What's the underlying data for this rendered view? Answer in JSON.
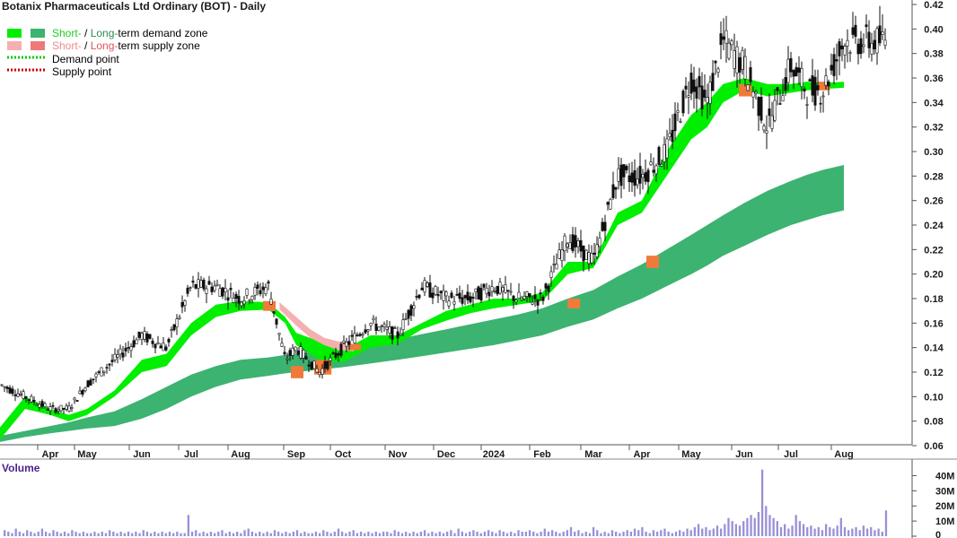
{
  "chart_data": {
    "type": "candlestick",
    "title": "Botanix Pharmaceuticals Ltd Ordinary (BOT) - Daily",
    "legend": {
      "placement": "top-left",
      "items": [
        {
          "label_a": "Short-",
          "label_b": " / ",
          "label_c": "Long-",
          "label_d": "term demand zone",
          "color_short": "#00ee00",
          "color_long": "#3cb371",
          "kind": "zone"
        },
        {
          "label_a": "Short-",
          "label_b": " / ",
          "label_c": "Long-",
          "label_d": "term supply zone",
          "color_short": "#f4b0b0",
          "color_long": "#f07878",
          "kind": "zone"
        },
        {
          "label": "Demand point",
          "color": "#00cc00",
          "kind": "dots"
        },
        {
          "label": "Supply point",
          "color": "#cc0000",
          "kind": "dots"
        }
      ]
    },
    "x_tick_labels": [
      "Apr",
      "May",
      "Jun",
      "Jul",
      "Aug",
      "Sep",
      "Oct",
      "Nov",
      "Dec",
      "2024",
      "Feb",
      "Mar",
      "Apr",
      "May",
      "Jun",
      "Jul",
      "Aug"
    ],
    "y_axis": {
      "side": "right",
      "ylim": [
        0.05,
        0.42
      ],
      "ticks": [
        0.06,
        0.08,
        0.1,
        0.12,
        0.14,
        0.16,
        0.18,
        0.2,
        0.22,
        0.24,
        0.26,
        0.28,
        0.3,
        0.32,
        0.34,
        0.36,
        0.38,
        0.4,
        0.42
      ]
    },
    "price_series": {
      "name": "BOT close",
      "x_month_index": [
        0,
        0.5,
        1,
        1.5,
        2,
        2.5,
        3,
        3.5,
        4,
        4.5,
        5,
        5.5,
        5.8,
        6,
        6.5,
        7,
        7.5,
        8,
        8.5,
        9,
        9.5,
        10,
        10.5,
        11,
        11.5,
        12,
        12.5,
        13,
        13.5,
        14,
        14.3,
        14.6,
        15,
        15.5,
        16,
        16.3,
        16.6,
        17
      ],
      "close": [
        0.11,
        0.1,
        0.09,
        0.09,
        0.11,
        0.13,
        0.15,
        0.14,
        0.19,
        0.19,
        0.18,
        0.19,
        0.13,
        0.14,
        0.12,
        0.14,
        0.16,
        0.15,
        0.19,
        0.18,
        0.18,
        0.19,
        0.18,
        0.18,
        0.23,
        0.21,
        0.28,
        0.28,
        0.3,
        0.36,
        0.34,
        0.39,
        0.37,
        0.32,
        0.37,
        0.35,
        0.35,
        0.39
      ]
    },
    "short_term_zone": {
      "upper": [
        0.075,
        0.1,
        0.09,
        0.085,
        0.09,
        0.105,
        0.13,
        0.135,
        0.16,
        0.175,
        0.178,
        0.177,
        0.165,
        0.152,
        0.145,
        0.138,
        0.15,
        0.15,
        0.16,
        0.17,
        0.175,
        0.18,
        0.18,
        0.185,
        0.21,
        0.21,
        0.25,
        0.26,
        0.3,
        0.33,
        0.34,
        0.355,
        0.36,
        0.355,
        0.355,
        0.357,
        0.356,
        0.357
      ],
      "lower": [
        0.065,
        0.09,
        0.085,
        0.08,
        0.085,
        0.1,
        0.12,
        0.125,
        0.15,
        0.165,
        0.17,
        0.171,
        0.16,
        0.142,
        0.13,
        0.128,
        0.14,
        0.143,
        0.155,
        0.162,
        0.168,
        0.172,
        0.175,
        0.178,
        0.2,
        0.205,
        0.24,
        0.25,
        0.28,
        0.31,
        0.32,
        0.34,
        0.35,
        0.345,
        0.348,
        0.35,
        0.351,
        0.352
      ]
    },
    "long_term_zone": {
      "upper": [
        0.068,
        0.072,
        0.076,
        0.079,
        0.083,
        0.088,
        0.098,
        0.108,
        0.118,
        0.125,
        0.13,
        0.132,
        0.134,
        0.135,
        0.137,
        0.14,
        0.143,
        0.147,
        0.151,
        0.155,
        0.159,
        0.163,
        0.167,
        0.172,
        0.18,
        0.187,
        0.198,
        0.208,
        0.22,
        0.232,
        0.24,
        0.248,
        0.258,
        0.268,
        0.276,
        0.281,
        0.285,
        0.289
      ],
      "lower": [
        0.063,
        0.067,
        0.07,
        0.072,
        0.074,
        0.076,
        0.082,
        0.09,
        0.1,
        0.108,
        0.114,
        0.117,
        0.119,
        0.12,
        0.122,
        0.124,
        0.127,
        0.13,
        0.133,
        0.136,
        0.139,
        0.142,
        0.146,
        0.15,
        0.157,
        0.163,
        0.172,
        0.18,
        0.19,
        0.2,
        0.207,
        0.215,
        0.223,
        0.232,
        0.24,
        0.244,
        0.248,
        0.252
      ]
    },
    "volume": {
      "title": "Volume",
      "unit": "M",
      "ticks": [
        "0",
        "10M",
        "20M",
        "30M",
        "40M"
      ],
      "tick_values": [
        0,
        10,
        20,
        30,
        40
      ],
      "ylim": [
        0,
        45
      ],
      "values_m": [
        4,
        3,
        2,
        5,
        3,
        2,
        4,
        3,
        2,
        3,
        5,
        3,
        2,
        4,
        3,
        2,
        3,
        2,
        4,
        3,
        2,
        3,
        2,
        2,
        3,
        2,
        3,
        2,
        4,
        3,
        2,
        3,
        2,
        3,
        2,
        3,
        2,
        4,
        3,
        2,
        3,
        2,
        3,
        2,
        3,
        2,
        3,
        2,
        2,
        14,
        3,
        4,
        2,
        3,
        2,
        3,
        2,
        3,
        4,
        2,
        3,
        2,
        3,
        2,
        4,
        5,
        3,
        2,
        3,
        2,
        3,
        2,
        4,
        3,
        2,
        3,
        2,
        3,
        4,
        2,
        3,
        2,
        2,
        3,
        2,
        4,
        3,
        2,
        3,
        5,
        3,
        2,
        3,
        4,
        2,
        3,
        2,
        3,
        2,
        3,
        2,
        3,
        3,
        2,
        4,
        3,
        2,
        3,
        2,
        3,
        2,
        3,
        4,
        2,
        3,
        2,
        3,
        2,
        3,
        4,
        2,
        5,
        3,
        2,
        3,
        4,
        3,
        2,
        3,
        4,
        3,
        2,
        4,
        3,
        2,
        3,
        2,
        4,
        3,
        3,
        4,
        3,
        2,
        3,
        5,
        3,
        4,
        3,
        2,
        3,
        4,
        6,
        3,
        4,
        2,
        3,
        2,
        6,
        4,
        2,
        3,
        2,
        4,
        3,
        2,
        3,
        4,
        3,
        5,
        4,
        6,
        3,
        2,
        4,
        3,
        4,
        5,
        3,
        2,
        3,
        4,
        3,
        5,
        4,
        6,
        8,
        5,
        6,
        4,
        5,
        7,
        5,
        8,
        12,
        10,
        8,
        7,
        10,
        12,
        14,
        12,
        16,
        44,
        20,
        14,
        12,
        10,
        6,
        8,
        5,
        7,
        14,
        10,
        8,
        6,
        7,
        5,
        6,
        4,
        8,
        6,
        5,
        7,
        12,
        6,
        4,
        5,
        6,
        4,
        7,
        5,
        6,
        4,
        5,
        3,
        17
      ]
    }
  }
}
